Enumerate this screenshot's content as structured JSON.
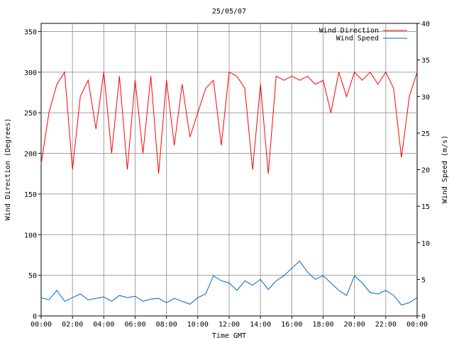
{
  "chart_data": {
    "type": "line",
    "title": "25/05/07",
    "xlabel": "Time GMT",
    "ylabel_left": "Wind Direction (Degrees)",
    "ylabel_right": "Wind Speed (m/s)",
    "x_ticks": [
      "00:00",
      "02:00",
      "04:00",
      "06:00",
      "08:00",
      "10:00",
      "12:00",
      "14:00",
      "16:00",
      "18:00",
      "20:00",
      "22:00",
      "00:00"
    ],
    "y_left_ticks": [
      0,
      50,
      100,
      150,
      200,
      250,
      300,
      350
    ],
    "y_right_ticks": [
      0,
      5,
      10,
      15,
      20,
      25,
      30,
      35,
      40
    ],
    "y_left_range": [
      0,
      360
    ],
    "y_right_range": [
      0,
      40
    ],
    "x_range_hours": [
      0,
      24
    ],
    "grid": true,
    "legend_position": "top-right",
    "series": [
      {
        "name": "Wind Direction",
        "axis": "left",
        "color": "#ff0000",
        "x_hours": [
          0,
          0.5,
          1,
          1.5,
          2,
          2.5,
          3,
          3.5,
          4,
          4.5,
          5,
          5.5,
          6,
          6.5,
          7,
          7.5,
          8,
          8.5,
          9,
          9.5,
          10,
          10.5,
          11,
          11.5,
          12,
          12.5,
          13,
          13.5,
          14,
          14.5,
          15,
          15.5,
          16,
          16.5,
          17,
          17.5,
          18,
          18.5,
          19,
          19.5,
          20,
          20.5,
          21,
          21.5,
          22,
          22.5,
          23,
          23.5,
          24
        ],
        "values": [
          187,
          250,
          285,
          300,
          180,
          270,
          290,
          230,
          300,
          200,
          295,
          180,
          290,
          200,
          295,
          175,
          290,
          210,
          285,
          220,
          250,
          280,
          290,
          210,
          300,
          295,
          280,
          180,
          285,
          175,
          295,
          290,
          295,
          290,
          295,
          285,
          290,
          250,
          300,
          270,
          300,
          290,
          300,
          285,
          300,
          280,
          195,
          270,
          300
        ]
      },
      {
        "name": "Wind Speed",
        "axis": "right",
        "color": "#0066cc",
        "x_hours": [
          0,
          0.5,
          1,
          1.5,
          2,
          2.5,
          3,
          3.5,
          4,
          4.5,
          5,
          5.5,
          6,
          6.5,
          7,
          7.5,
          8,
          8.5,
          9,
          9.5,
          10,
          10.5,
          11,
          11.5,
          12,
          12.5,
          13,
          13.5,
          14,
          14.5,
          15,
          15.5,
          16,
          16.5,
          17,
          17.5,
          18,
          18.5,
          19,
          19.5,
          20,
          20.5,
          21,
          21.5,
          22,
          22.5,
          23,
          23.5,
          24
        ],
        "values": [
          2.5,
          2.2,
          3.5,
          2.0,
          2.5,
          3.0,
          2.2,
          2.4,
          2.6,
          2.0,
          2.8,
          2.5,
          2.7,
          2.0,
          2.3,
          2.4,
          1.8,
          2.4,
          2.0,
          1.6,
          2.5,
          3.0,
          5.5,
          4.8,
          4.5,
          3.5,
          4.8,
          4.2,
          5.0,
          3.6,
          4.8,
          5.5,
          6.5,
          7.5,
          6.0,
          5.0,
          5.5,
          4.5,
          3.5,
          2.8,
          5.5,
          4.5,
          3.2,
          3.0,
          3.5,
          2.8,
          1.5,
          1.8,
          2.5
        ]
      }
    ]
  }
}
